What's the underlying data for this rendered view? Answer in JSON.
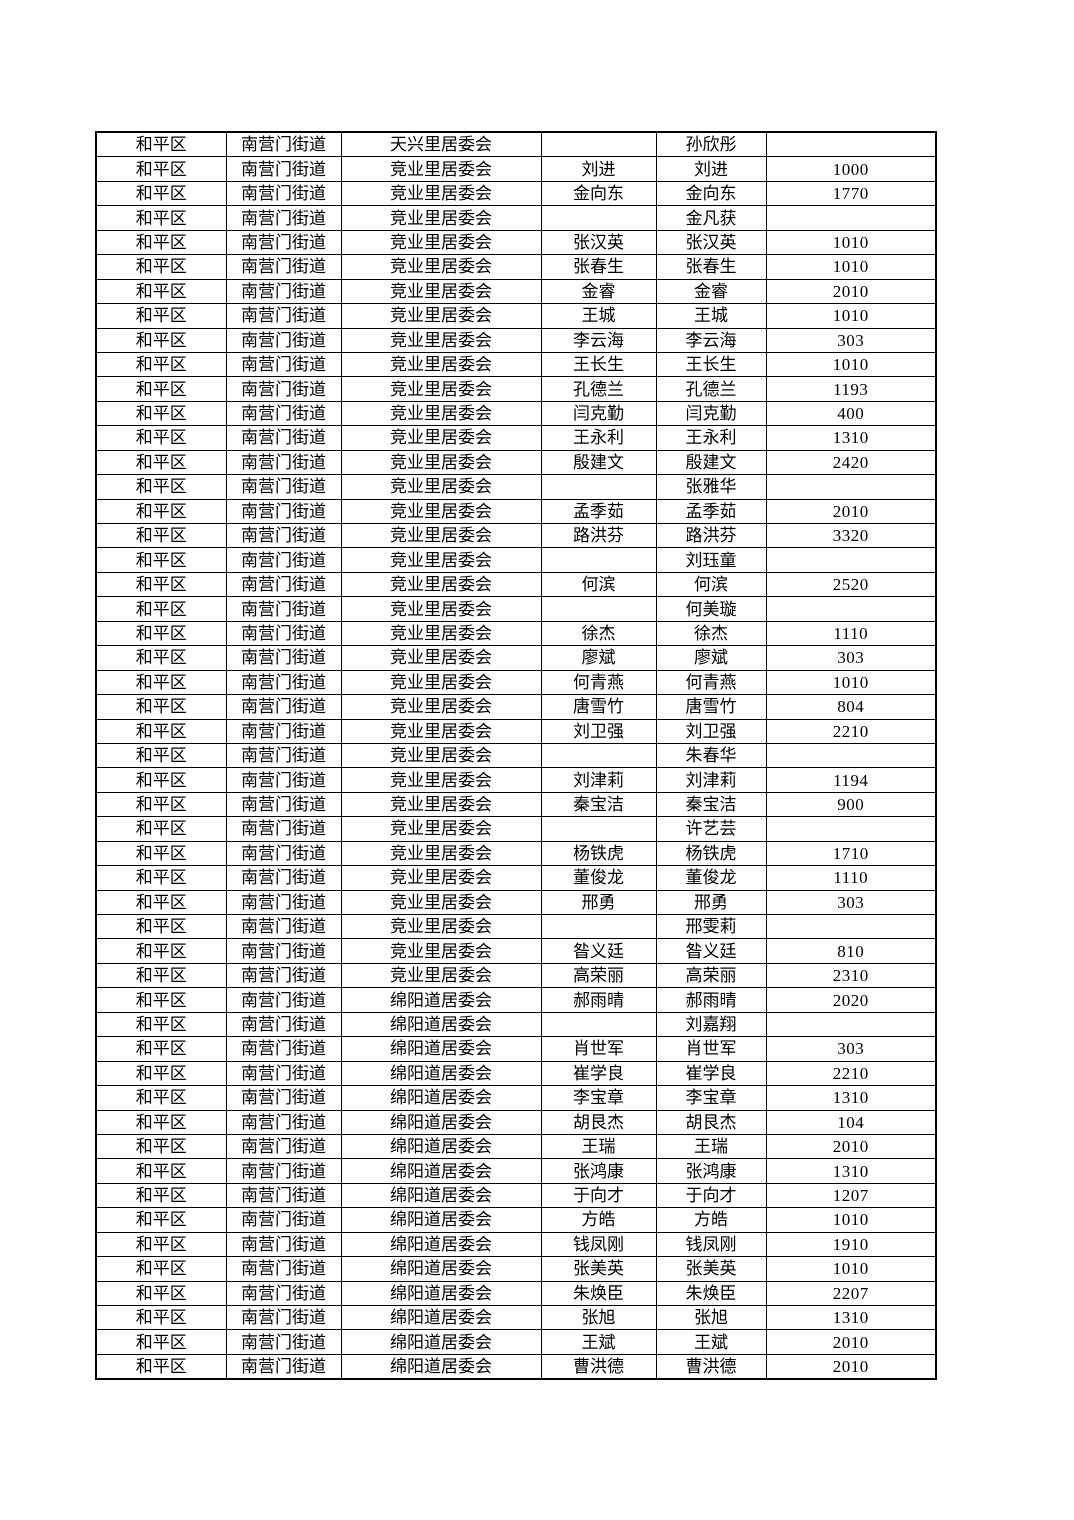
{
  "table": {
    "rows": [
      [
        "和平区",
        "南营门街道",
        "天兴里居委会",
        "",
        "孙欣彤",
        ""
      ],
      [
        "和平区",
        "南营门街道",
        "竞业里居委会",
        "刘进",
        "刘进",
        "1000"
      ],
      [
        "和平区",
        "南营门街道",
        "竞业里居委会",
        "金向东",
        "金向东",
        "1770"
      ],
      [
        "和平区",
        "南营门街道",
        "竞业里居委会",
        "",
        "金凡获",
        ""
      ],
      [
        "和平区",
        "南营门街道",
        "竞业里居委会",
        "张汉英",
        "张汉英",
        "1010"
      ],
      [
        "和平区",
        "南营门街道",
        "竞业里居委会",
        "张春生",
        "张春生",
        "1010"
      ],
      [
        "和平区",
        "南营门街道",
        "竞业里居委会",
        "金睿",
        "金睿",
        "2010"
      ],
      [
        "和平区",
        "南营门街道",
        "竞业里居委会",
        "王城",
        "王城",
        "1010"
      ],
      [
        "和平区",
        "南营门街道",
        "竞业里居委会",
        "李云海",
        "李云海",
        "303"
      ],
      [
        "和平区",
        "南营门街道",
        "竞业里居委会",
        "王长生",
        "王长生",
        "1010"
      ],
      [
        "和平区",
        "南营门街道",
        "竞业里居委会",
        "孔德兰",
        "孔德兰",
        "1193"
      ],
      [
        "和平区",
        "南营门街道",
        "竞业里居委会",
        "闫克勤",
        "闫克勤",
        "400"
      ],
      [
        "和平区",
        "南营门街道",
        "竞业里居委会",
        "王永利",
        "王永利",
        "1310"
      ],
      [
        "和平区",
        "南营门街道",
        "竞业里居委会",
        "殷建文",
        "殷建文",
        "2420"
      ],
      [
        "和平区",
        "南营门街道",
        "竞业里居委会",
        "",
        "张雅华",
        ""
      ],
      [
        "和平区",
        "南营门街道",
        "竞业里居委会",
        "孟季茹",
        "孟季茹",
        "2010"
      ],
      [
        "和平区",
        "南营门街道",
        "竞业里居委会",
        "路洪芬",
        "路洪芬",
        "3320"
      ],
      [
        "和平区",
        "南营门街道",
        "竞业里居委会",
        "",
        "刘珏童",
        ""
      ],
      [
        "和平区",
        "南营门街道",
        "竞业里居委会",
        "何滨",
        "何滨",
        "2520"
      ],
      [
        "和平区",
        "南营门街道",
        "竞业里居委会",
        "",
        "何美璇",
        ""
      ],
      [
        "和平区",
        "南营门街道",
        "竞业里居委会",
        "徐杰",
        "徐杰",
        "1110"
      ],
      [
        "和平区",
        "南营门街道",
        "竞业里居委会",
        "廖斌",
        "廖斌",
        "303"
      ],
      [
        "和平区",
        "南营门街道",
        "竞业里居委会",
        "何青燕",
        "何青燕",
        "1010"
      ],
      [
        "和平区",
        "南营门街道",
        "竞业里居委会",
        "唐雪竹",
        "唐雪竹",
        "804"
      ],
      [
        "和平区",
        "南营门街道",
        "竞业里居委会",
        "刘卫强",
        "刘卫强",
        "2210"
      ],
      [
        "和平区",
        "南营门街道",
        "竞业里居委会",
        "",
        "朱春华",
        ""
      ],
      [
        "和平区",
        "南营门街道",
        "竞业里居委会",
        "刘津莉",
        "刘津莉",
        "1194"
      ],
      [
        "和平区",
        "南营门街道",
        "竞业里居委会",
        "秦宝洁",
        "秦宝洁",
        "900"
      ],
      [
        "和平区",
        "南营门街道",
        "竞业里居委会",
        "",
        "许艺芸",
        ""
      ],
      [
        "和平区",
        "南营门街道",
        "竞业里居委会",
        "杨铁虎",
        "杨铁虎",
        "1710"
      ],
      [
        "和平区",
        "南营门街道",
        "竞业里居委会",
        "董俊龙",
        "董俊龙",
        "1110"
      ],
      [
        "和平区",
        "南营门街道",
        "竞业里居委会",
        "邢勇",
        "邢勇",
        "303"
      ],
      [
        "和平区",
        "南营门街道",
        "竞业里居委会",
        "",
        "邢雯莉",
        ""
      ],
      [
        "和平区",
        "南营门街道",
        "竞业里居委会",
        "昝义廷",
        "昝义廷",
        "810"
      ],
      [
        "和平区",
        "南营门街道",
        "竞业里居委会",
        "高荣丽",
        "高荣丽",
        "2310"
      ],
      [
        "和平区",
        "南营门街道",
        "绵阳道居委会",
        "郝雨晴",
        "郝雨晴",
        "2020"
      ],
      [
        "和平区",
        "南营门街道",
        "绵阳道居委会",
        "",
        "刘嘉翔",
        ""
      ],
      [
        "和平区",
        "南营门街道",
        "绵阳道居委会",
        "肖世军",
        "肖世军",
        "303"
      ],
      [
        "和平区",
        "南营门街道",
        "绵阳道居委会",
        "崔学良",
        "崔学良",
        "2210"
      ],
      [
        "和平区",
        "南营门街道",
        "绵阳道居委会",
        "李宝章",
        "李宝章",
        "1310"
      ],
      [
        "和平区",
        "南营门街道",
        "绵阳道居委会",
        "胡艮杰",
        "胡艮杰",
        "104"
      ],
      [
        "和平区",
        "南营门街道",
        "绵阳道居委会",
        "王瑞",
        "王瑞",
        "2010"
      ],
      [
        "和平区",
        "南营门街道",
        "绵阳道居委会",
        "张鸿康",
        "张鸿康",
        "1310"
      ],
      [
        "和平区",
        "南营门街道",
        "绵阳道居委会",
        "于向才",
        "于向才",
        "1207"
      ],
      [
        "和平区",
        "南营门街道",
        "绵阳道居委会",
        "方皓",
        "方皓",
        "1010"
      ],
      [
        "和平区",
        "南营门街道",
        "绵阳道居委会",
        "钱凤刚",
        "钱凤刚",
        "1910"
      ],
      [
        "和平区",
        "南营门街道",
        "绵阳道居委会",
        "张美英",
        "张美英",
        "1010"
      ],
      [
        "和平区",
        "南营门街道",
        "绵阳道居委会",
        "朱焕臣",
        "朱焕臣",
        "2207"
      ],
      [
        "和平区",
        "南营门街道",
        "绵阳道居委会",
        "张旭",
        "张旭",
        "1310"
      ],
      [
        "和平区",
        "南营门街道",
        "绵阳道居委会",
        "王斌",
        "王斌",
        "2010"
      ],
      [
        "和平区",
        "南营门街道",
        "绵阳道居委会",
        "曹洪德",
        "曹洪德",
        "2010"
      ]
    ],
    "colors": {
      "border": "#000000",
      "text": "#000000",
      "page_background": "#ffffff"
    }
  }
}
